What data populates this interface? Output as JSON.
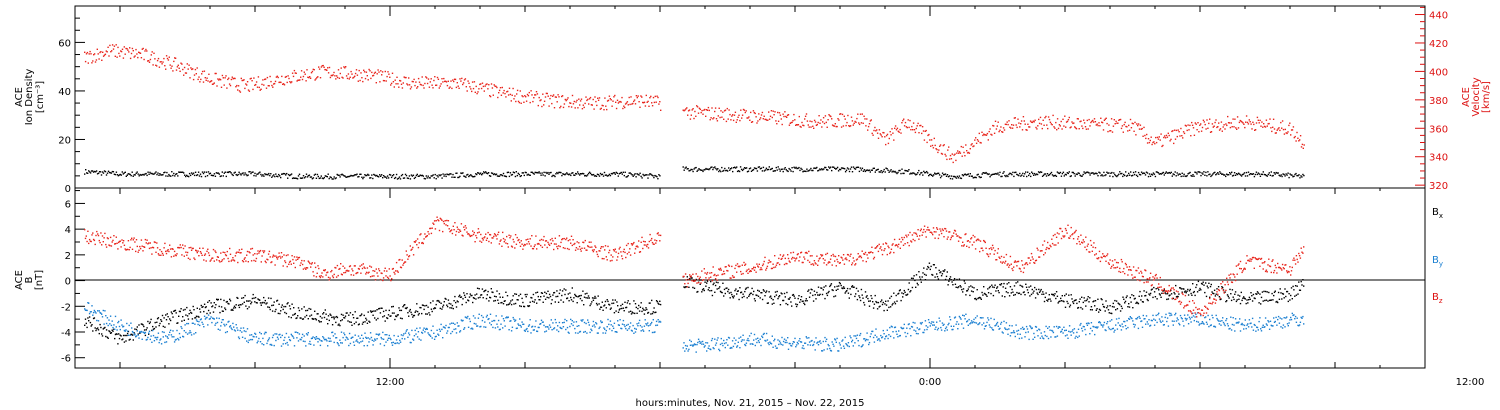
{
  "chart_data": [
    {
      "type": "scatter",
      "title": "",
      "ylabel_lines": [
        "ACE",
        "Ion Density",
        "[cm⁻³]"
      ],
      "y2label_lines": [
        "ACE",
        "Velocity",
        "[km/s]"
      ],
      "ylim": [
        0,
        75
      ],
      "y2lim": [
        318,
        446
      ],
      "yticks": [
        "0",
        "20",
        "40",
        "60"
      ],
      "y2ticks": [
        "320",
        "340",
        "360",
        "380",
        "400",
        "420",
        "440"
      ],
      "colors": {
        "density": "#000000",
        "velocity": "#e8251c"
      },
      "xlim_hours": [
        5.0,
        35.0
      ],
      "series": [
        {
          "color": "#000000",
          "segments": [
            {
              "x": [
                5.2,
                6.0,
                7.0,
                8.0,
                9.0,
                10.0,
                11.0,
                12.0,
                13.0,
                14.0,
                15.0,
                16.0,
                17.0,
                18.0
              ],
              "y": [
                7,
                6,
                6,
                6,
                6,
                5,
                5,
                5,
                5,
                6,
                6,
                6,
                6,
                5
              ]
            },
            {
              "x": [
                18.5,
                19.5,
                20.5,
                21.5,
                22.5,
                23.5,
                24.5,
                25.5,
                26.5,
                27.5,
                28.5,
                29.5,
                30.5,
                31.5,
                32.3
              ],
              "y": [
                8,
                8,
                8,
                8,
                8,
                7,
                5,
                6,
                6,
                6,
                6,
                6,
                6,
                6,
                5
              ]
            }
          ]
        },
        {
          "color": "#e8251c",
          "segments": [
            {
              "x": [
                5.2,
                5.8,
                6.5,
                7.2,
                8.0,
                8.8,
                9.5,
                10.5,
                11.5,
                12.5,
                13.5,
                14.5,
                15.5,
                16.5,
                17.5,
                18.0
              ],
              "y": [
                410,
                415,
                412,
                405,
                395,
                390,
                395,
                400,
                398,
                392,
                392,
                385,
                380,
                378,
                380,
                378
              ]
            },
            {
              "x": [
                18.5,
                19.5,
                20.5,
                21.5,
                22.5,
                23.0,
                23.5,
                24.0,
                24.5,
                25.5,
                26.5,
                27.5,
                28.5,
                29.0,
                30.0,
                31.0,
                32.0,
                32.3
              ],
              "y": [
                372,
                370,
                368,
                365,
                367,
                352,
                365,
                352,
                340,
                362,
                365,
                363,
                362,
                350,
                362,
                365,
                360,
                350
              ]
            }
          ]
        }
      ]
    },
    {
      "type": "scatter",
      "title": "",
      "ylabel_lines": [
        "ACE",
        "B",
        "[nT]"
      ],
      "ylim": [
        -6.8,
        7.2
      ],
      "yticks": [
        "-6",
        "-4",
        "-2",
        "0",
        "2",
        "4",
        "6"
      ],
      "colors": {
        "bx": "#000000",
        "by": "#1a7fd1",
        "bz": "#e8251c"
      },
      "legend": [
        {
          "name": "B",
          "sub": "x",
          "color": "#000000"
        },
        {
          "name": "B",
          "sub": "y",
          "color": "#1a7fd1"
        },
        {
          "name": "B",
          "sub": "z",
          "color": "#e8251c"
        }
      ],
      "series": [
        {
          "name": "Bx",
          "color": "#000000",
          "segments": [
            {
              "x": [
                5.2,
                6.0,
                7.0,
                8.0,
                9.0,
                10.0,
                11.0,
                12.0,
                13.0,
                14.0,
                15.0,
                16.0,
                17.0,
                18.0
              ],
              "y": [
                -3,
                -4.5,
                -3,
                -2,
                -1.5,
                -2.5,
                -3,
                -2.5,
                -2,
                -1,
                -1.5,
                -1,
                -2,
                -2
              ]
            },
            {
              "x": [
                18.5,
                19.0,
                20.0,
                21.0,
                22.0,
                23.0,
                24.0,
                25.0,
                26.0,
                27.0,
                28.0,
                29.0,
                30.0,
                31.0,
                32.0,
                32.3
              ],
              "y": [
                0,
                -0.5,
                -1,
                -1.5,
                -0.5,
                -2,
                1,
                -1,
                -0.5,
                -1.5,
                -2,
                -1,
                -0.5,
                -1.5,
                -1,
                0
              ]
            }
          ]
        },
        {
          "name": "By",
          "color": "#1a7fd1",
          "segments": [
            {
              "x": [
                5.2,
                6.0,
                7.0,
                8.0,
                9.0,
                10.0,
                11.0,
                12.0,
                13.0,
                14.0,
                15.0,
                16.0,
                17.0,
                18.0
              ],
              "y": [
                -2,
                -3.5,
                -4.5,
                -3,
                -4.5,
                -4.5,
                -4.5,
                -4.5,
                -4,
                -3,
                -3.5,
                -3.5,
                -3.5,
                -3.5
              ]
            },
            {
              "x": [
                18.5,
                19.0,
                20.0,
                21.0,
                22.0,
                23.0,
                24.0,
                25.0,
                26.0,
                27.0,
                28.0,
                29.0,
                30.0,
                31.0,
                32.0,
                32.3
              ],
              "y": [
                -5,
                -5,
                -4.5,
                -4.8,
                -5,
                -4,
                -3.5,
                -3,
                -4,
                -4,
                -3.5,
                -3,
                -3,
                -3.5,
                -3,
                -3
              ]
            }
          ]
        },
        {
          "name": "Bz",
          "color": "#e8251c",
          "segments": [
            {
              "x": [
                5.2,
                6.0,
                7.0,
                8.0,
                9.0,
                10.0,
                10.5,
                11.0,
                12.0,
                13.0,
                14.0,
                15.0,
                16.0,
                17.0,
                18.0
              ],
              "y": [
                3.5,
                3,
                2.5,
                2,
                2,
                1.5,
                0.5,
                1,
                0.5,
                4.5,
                3.5,
                3,
                3,
                2,
                3.5
              ]
            },
            {
              "x": [
                18.5,
                19.0,
                20.0,
                21.0,
                22.0,
                23.0,
                24.0,
                25.0,
                26.0,
                27.0,
                28.0,
                29.0,
                30.0,
                31.0,
                32.0,
                32.3
              ],
              "y": [
                0,
                0.5,
                1,
                2,
                1.5,
                2.5,
                4,
                3,
                1,
                4,
                1.5,
                0,
                -2.5,
                1.5,
                1,
                2.5
              ]
            }
          ]
        }
      ]
    }
  ],
  "x_axis": {
    "ticks": [
      "12:00",
      "0:00",
      "12:00"
    ],
    "tick_hours": [
      12,
      24,
      36
    ],
    "label": "hours:minutes, Nov. 21, 2015 – Nov. 22, 2015"
  }
}
